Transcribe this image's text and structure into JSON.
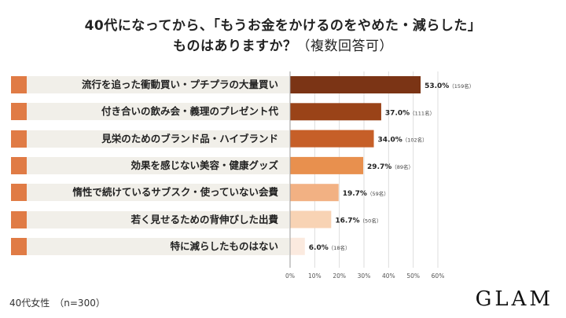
{
  "title": {
    "line1": "40代になってから、「もうお金をかけるのをやめた・減らした」",
    "line2_main": "ものはありますか？",
    "line2_sub": "（複数回答可）"
  },
  "footer": {
    "sample": "40代女性　（n=300）"
  },
  "logo": "GLAM",
  "colors": {
    "row_bg": "#f1efe9",
    "accent": "#e07b45",
    "bars": [
      "#7b3415",
      "#9a4318",
      "#c65f28",
      "#e8904e",
      "#f2b183",
      "#f8d3b4",
      "#fbeadf"
    ]
  },
  "chart_data": {
    "type": "bar",
    "orientation": "horizontal",
    "categories": [
      "流行を追った衝動買い・プチプラの大量買い",
      "付き合いの飲み会・義理のプレゼント代",
      "見栄のためのブランド品・ハイブランド",
      "効果を感じない美容・健康グッズ",
      "惰性で続けているサブスク・使っていない会費",
      "若く見せるための背伸びした出費",
      "特に減らしたものはない"
    ],
    "values": [
      53.0,
      37.0,
      34.0,
      29.7,
      19.7,
      16.7,
      6.0
    ],
    "value_labels": [
      "53.0%",
      "37.0%",
      "34.0%",
      "29.7%",
      "19.7%",
      "16.7%",
      "6.0%"
    ],
    "counts": [
      "（159名）",
      "（111名）",
      "（102名）",
      "（89名）",
      "（59名）",
      "（50名）",
      "（18名）"
    ],
    "xlim": [
      0,
      60
    ],
    "xticks": [
      "0%",
      "10%",
      "20%",
      "30%",
      "40%",
      "50%",
      "60%"
    ],
    "grid": true,
    "legend": "none"
  }
}
